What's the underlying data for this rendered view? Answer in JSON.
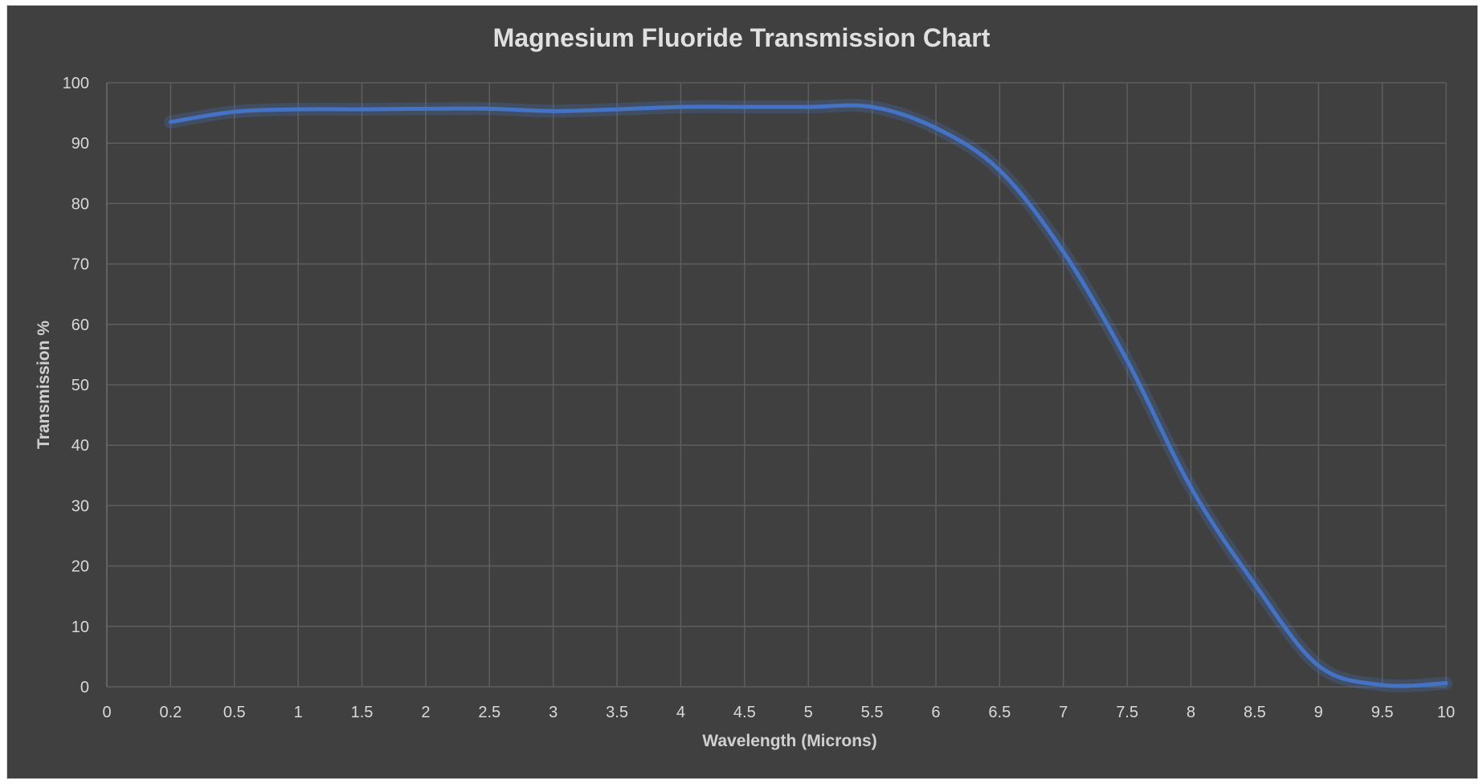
{
  "chart_data": {
    "type": "line",
    "title": "Magnesium Fluoride Transmission Chart",
    "xlabel": "Wavelength (Microns)",
    "ylabel": "Transmission %",
    "categories": [
      "0",
      "0.2",
      "0.5",
      "1",
      "1.5",
      "2",
      "2.5",
      "3",
      "3.5",
      "4",
      "4.5",
      "5",
      "5.5",
      "6",
      "6.5",
      "7",
      "7.5",
      "8",
      "8.5",
      "9",
      "9.5",
      "10"
    ],
    "yticks": [
      "0",
      "10",
      "20",
      "30",
      "40",
      "50",
      "60",
      "70",
      "80",
      "90",
      "100"
    ],
    "ylim": [
      0,
      100
    ],
    "grid": true,
    "smooth": true,
    "series": [
      {
        "name": "Transmission",
        "color": "#4472c4",
        "values": [
          null,
          93.5,
          95.2,
          95.6,
          95.6,
          95.7,
          95.7,
          95.3,
          95.6,
          96,
          96,
          96,
          96,
          92.5,
          85.5,
          72,
          54,
          33,
          17,
          3.5,
          0.3,
          0.6
        ]
      }
    ]
  }
}
